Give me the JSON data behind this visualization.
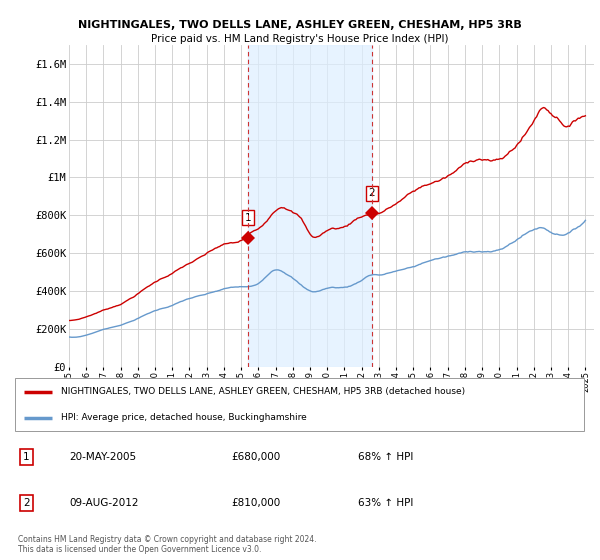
{
  "title1": "NIGHTINGALES, TWO DELLS LANE, ASHLEY GREEN, CHESHAM, HP5 3RB",
  "title2": "Price paid vs. HM Land Registry's House Price Index (HPI)",
  "overall_bg": "#ffffff",
  "plot_bg": "#ffffff",
  "grid_color": "#cccccc",
  "ylabel_ticks": [
    "£0",
    "£200K",
    "£400K",
    "£600K",
    "£800K",
    "£1M",
    "£1.2M",
    "£1.4M",
    "£1.6M"
  ],
  "ytick_values": [
    0,
    200000,
    400000,
    600000,
    800000,
    1000000,
    1200000,
    1400000,
    1600000
  ],
  "ylim": [
    0,
    1700000
  ],
  "xlim_start": 1995.0,
  "xlim_end": 2025.5,
  "sale1_x": 2005.38,
  "sale1_y": 680000,
  "sale2_x": 2012.58,
  "sale2_y": 810000,
  "shade_color": "#ddeeff",
  "legend_line1": "NIGHTINGALES, TWO DELLS LANE, ASHLEY GREEN, CHESHAM, HP5 3RB (detached house)",
  "legend_line2": "HPI: Average price, detached house, Buckinghamshire",
  "annotation1_date": "20-MAY-2005",
  "annotation1_price": "£680,000",
  "annotation1_hpi": "68% ↑ HPI",
  "annotation2_date": "09-AUG-2012",
  "annotation2_price": "£810,000",
  "annotation2_hpi": "63% ↑ HPI",
  "footer": "Contains HM Land Registry data © Crown copyright and database right 2024.\nThis data is licensed under the Open Government Licence v3.0.",
  "red_line_color": "#cc0000",
  "blue_line_color": "#6699cc",
  "dashed_vline_color": "#cc3333"
}
